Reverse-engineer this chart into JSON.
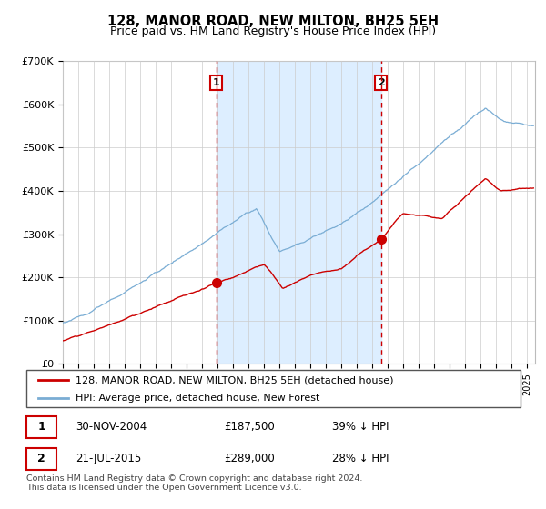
{
  "title": "128, MANOR ROAD, NEW MILTON, BH25 5EH",
  "subtitle": "Price paid vs. HM Land Registry's House Price Index (HPI)",
  "legend_line1": "128, MANOR ROAD, NEW MILTON, BH25 5EH (detached house)",
  "legend_line2": "HPI: Average price, detached house, New Forest",
  "annotation1_price": 187500,
  "annotation2_price": 289000,
  "vline1_x": 2004.92,
  "vline2_x": 2015.55,
  "red_color": "#cc0000",
  "blue_color": "#7aadd4",
  "shade_color": "#ddeeff",
  "footer": "Contains HM Land Registry data © Crown copyright and database right 2024.\nThis data is licensed under the Open Government Licence v3.0.",
  "ylim": [
    0,
    700000
  ],
  "xlim_start": 1995.0,
  "xlim_end": 2025.5,
  "row1_date": "30-NOV-2004",
  "row1_price": "£187,500",
  "row1_pct": "39% ↓ HPI",
  "row2_date": "21-JUL-2015",
  "row2_price": "£289,000",
  "row2_pct": "28% ↓ HPI"
}
